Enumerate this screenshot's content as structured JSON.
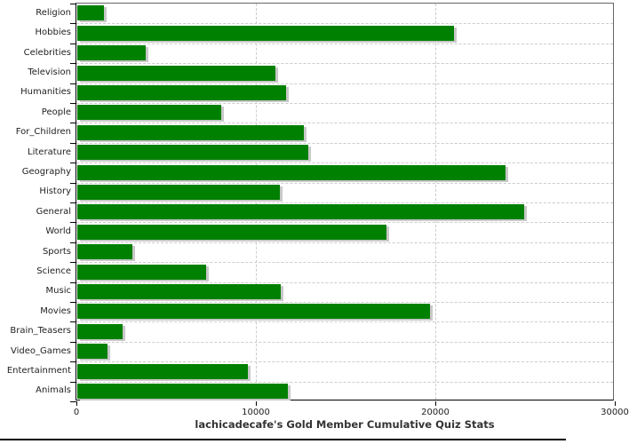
{
  "chart_data": {
    "type": "bar",
    "orientation": "horizontal",
    "title": "lachicadecafe's Gold Member Cumulative Quiz Stats",
    "categories": [
      "Religion",
      "Hobbies",
      "Celebrities",
      "Television",
      "Humanities",
      "People",
      "For_Children",
      "Literature",
      "Geography",
      "History",
      "General",
      "World",
      "Sports",
      "Science",
      "Music",
      "Movies",
      "Brain_Teasers",
      "Video_Games",
      "Entertainment",
      "Animals"
    ],
    "values": [
      1500,
      21000,
      3800,
      11050,
      11650,
      8000,
      12600,
      12850,
      23850,
      11300,
      24900,
      17250,
      3050,
      7200,
      11350,
      19650,
      2500,
      1700,
      9500,
      11750
    ],
    "xlabel": "",
    "ylabel": "",
    "xlim": [
      0,
      30000
    ],
    "x_ticks": [
      0,
      10000,
      20000,
      30000
    ],
    "x_tick_labels": [
      "0",
      "10000",
      "20000",
      "30000"
    ],
    "grid": "dashed",
    "legend": "none",
    "colors": {
      "bar": "#008000",
      "bar_shadow": "#c8c8c8",
      "grid_line": "#cccccc",
      "axis": "#000000",
      "plot_border": "#666666",
      "text": "#222222",
      "title_text": "#333333",
      "bottom_rule": "#000000"
    }
  }
}
